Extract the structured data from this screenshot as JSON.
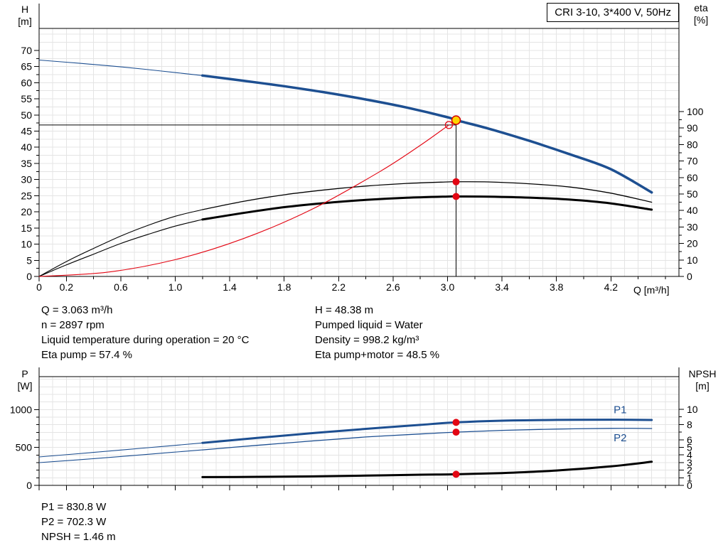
{
  "title_box": "CRI 3-10, 3*400 V, 50Hz",
  "axis_titles": {
    "top_left_line1": "H",
    "top_left_line2": "[m]",
    "top_right_line1": "eta",
    "top_right_line2": "[%]",
    "x_label": "Q [m³/h]",
    "bottom_left_line1": "P",
    "bottom_left_line2": "[W]",
    "bottom_right_line1": "NPSH",
    "bottom_right_line2": "[m]"
  },
  "info_top": {
    "left": [
      "Q = 3.063 m³/h",
      "n = 2897 rpm",
      "Liquid temperature during operation = 20 °C",
      "Eta pump = 57.4 %"
    ],
    "right": [
      "H = 48.38 m",
      "Pumped liquid = Water",
      "Density = 998.2 kg/m³",
      "Eta pump+motor = 48.5 %"
    ]
  },
  "info_bottom": [
    "P1 = 830.8 W",
    "P2 = 702.3 W",
    "NPSH = 1.46 m"
  ],
  "colors": {
    "curve_blue": "#1d4f91",
    "curve_black": "#000000",
    "curve_red": "#e30613",
    "dot_red": "#e30613",
    "duty_yellow": "#ffd400",
    "grid": "#e4e4e4"
  },
  "chart_data": {
    "type": "line",
    "x": {
      "label": "Q [m³/h]",
      "min": 0,
      "max": 4.7,
      "labeled_ticks": [
        "0",
        "0.2",
        "0.6",
        "1.0",
        "1.4",
        "1.8",
        "2.2",
        "2.6",
        "3.0",
        "3.4",
        "3.8",
        "4.2"
      ],
      "tick_step": 0.2,
      "minor_tick_step": 0.1
    },
    "duty_point": {
      "Q": 3.063,
      "H": 48.38,
      "eta_pump": 57.4,
      "eta_pump_motor": 48.5,
      "P1": 830.8,
      "P2": 702.3,
      "NPSH": 1.46,
      "n_rpm": 2897
    },
    "top_chart": {
      "left_axis": {
        "name": "H [m]",
        "min": 0,
        "max": 76.8,
        "labeled_ticks": [
          0,
          5,
          10,
          15,
          20,
          25,
          30,
          35,
          40,
          45,
          50,
          55,
          60,
          65,
          70
        ],
        "minor_tick_step": 2.5
      },
      "right_axis": {
        "name": "eta [%]",
        "min": 0,
        "max": 150.4,
        "labeled_ticks": [
          0,
          10,
          20,
          30,
          40,
          50,
          60,
          70,
          80,
          90,
          100
        ],
        "minor_tick_step": 5
      },
      "series": [
        {
          "name": "QH",
          "axis": "left",
          "color": "blue",
          "width": 3.5,
          "thin_until": 1.2,
          "points": [
            [
              0,
              67
            ],
            [
              0.3,
              66
            ],
            [
              0.6,
              64.9
            ],
            [
              0.9,
              63.6
            ],
            [
              1.2,
              62.2
            ],
            [
              1.5,
              60.6
            ],
            [
              1.8,
              58.9
            ],
            [
              2.1,
              57
            ],
            [
              2.4,
              54.8
            ],
            [
              2.7,
              52.3
            ],
            [
              3.0,
              49.3
            ],
            [
              3.063,
              48.38
            ],
            [
              3.3,
              45.8
            ],
            [
              3.6,
              42
            ],
            [
              3.9,
              37.8
            ],
            [
              4.2,
              33.2
            ],
            [
              4.5,
              26
            ]
          ]
        },
        {
          "name": "eta-pump",
          "axis": "right",
          "color": "black",
          "width": 1.3,
          "thin_until": 1.2,
          "points": [
            [
              0,
              0
            ],
            [
              0.2,
              9
            ],
            [
              0.4,
              17
            ],
            [
              0.6,
              24.5
            ],
            [
              0.8,
              31
            ],
            [
              1.0,
              36.5
            ],
            [
              1.2,
              40.5
            ],
            [
              1.5,
              45.5
            ],
            [
              1.8,
              49.5
            ],
            [
              2.1,
              52.5
            ],
            [
              2.4,
              54.8
            ],
            [
              2.7,
              56.4
            ],
            [
              3.0,
              57.3
            ],
            [
              3.063,
              57.4
            ],
            [
              3.3,
              57.3
            ],
            [
              3.6,
              56.2
            ],
            [
              3.9,
              54.2
            ],
            [
              4.2,
              50.5
            ],
            [
              4.5,
              45
            ]
          ]
        },
        {
          "name": "eta-pump-motor",
          "axis": "right",
          "color": "black",
          "width": 3,
          "thin_until": 1.2,
          "points": [
            [
              0,
              0
            ],
            [
              0.2,
              7
            ],
            [
              0.4,
              13.5
            ],
            [
              0.6,
              20
            ],
            [
              0.8,
              25.5
            ],
            [
              1.0,
              30.5
            ],
            [
              1.2,
              34.5
            ],
            [
              1.5,
              38.5
            ],
            [
              1.8,
              42
            ],
            [
              2.1,
              44.5
            ],
            [
              2.4,
              46.4
            ],
            [
              2.7,
              47.7
            ],
            [
              3.0,
              48.45
            ],
            [
              3.063,
              48.5
            ],
            [
              3.3,
              48.4
            ],
            [
              3.6,
              47.8
            ],
            [
              3.9,
              46.6
            ],
            [
              4.2,
              44.3
            ],
            [
              4.5,
              40.5
            ]
          ]
        },
        {
          "name": "system-curve",
          "axis": "left",
          "color": "red",
          "width": 1.1,
          "thin_until": 0,
          "points": [
            [
              0,
              0
            ],
            [
              0.5,
              1.3
            ],
            [
              1.0,
              5.2
            ],
            [
              1.5,
              11.7
            ],
            [
              2.0,
              20.7
            ],
            [
              2.5,
              32.4
            ],
            [
              2.8,
              40.6
            ],
            [
              3.01,
              46.9
            ]
          ]
        }
      ],
      "crosshair": {
        "h_value": 46.9,
        "h_to_Q": 3.063,
        "v_at_Q": 3.063,
        "v_top_value": 48.38
      },
      "markers": [
        {
          "kind": "open-circle",
          "Q": 3.01,
          "axis": "left",
          "value": 46.9
        },
        {
          "kind": "duty-point",
          "Q": 3.063,
          "axis": "left",
          "value": 48.38
        },
        {
          "kind": "dot",
          "Q": 3.063,
          "axis": "right",
          "value": 57.4
        },
        {
          "kind": "dot",
          "Q": 3.063,
          "axis": "right",
          "value": 48.5
        }
      ],
      "curve_labels": []
    },
    "bottom_chart": {
      "left_axis": {
        "name": "P [W]",
        "min": 0,
        "max": 1434,
        "labeled_ticks": [
          0,
          500,
          1000
        ],
        "minor_tick_step": 100
      },
      "right_axis": {
        "name": "NPSH [m]",
        "min": 0,
        "max": 14.3,
        "labeled_ticks": [
          0,
          1,
          2,
          3,
          4,
          5,
          6,
          8,
          10
        ],
        "minor_tick_step": 1
      },
      "series": [
        {
          "name": "P1",
          "axis": "left",
          "color": "blue",
          "width": 3,
          "thin_until": 1.2,
          "points": [
            [
              0,
              375
            ],
            [
              0.4,
              435
            ],
            [
              0.8,
              497
            ],
            [
              1.2,
              560
            ],
            [
              1.6,
              625
            ],
            [
              2.0,
              688
            ],
            [
              2.4,
              745
            ],
            [
              2.8,
              798
            ],
            [
              3.063,
              830.8
            ],
            [
              3.4,
              853
            ],
            [
              3.8,
              863
            ],
            [
              4.2,
              866
            ],
            [
              4.5,
              862
            ]
          ]
        },
        {
          "name": "P2",
          "axis": "left",
          "color": "blue",
          "width": 1.3,
          "thin_until": 1.2,
          "points": [
            [
              0,
              300
            ],
            [
              0.4,
              352
            ],
            [
              0.8,
              410
            ],
            [
              1.2,
              468
            ],
            [
              1.6,
              528
            ],
            [
              2.0,
              585
            ],
            [
              2.4,
              638
            ],
            [
              2.8,
              678
            ],
            [
              3.063,
              702.3
            ],
            [
              3.4,
              725
            ],
            [
              3.8,
              742
            ],
            [
              4.2,
              752
            ],
            [
              4.5,
              750
            ]
          ]
        },
        {
          "name": "NPSH",
          "axis": "right",
          "color": "black",
          "width": 3,
          "thin_until": 0,
          "points": [
            [
              1.2,
              1.08
            ],
            [
              1.6,
              1.12
            ],
            [
              2.0,
              1.18
            ],
            [
              2.4,
              1.28
            ],
            [
              2.8,
              1.4
            ],
            [
              3.063,
              1.46
            ],
            [
              3.4,
              1.62
            ],
            [
              3.8,
              1.95
            ],
            [
              4.2,
              2.5
            ],
            [
              4.5,
              3.1
            ]
          ]
        }
      ],
      "markers": [
        {
          "kind": "dot",
          "Q": 3.063,
          "axis": "left",
          "value": 830.8
        },
        {
          "kind": "dot",
          "Q": 3.063,
          "axis": "left",
          "value": 702.3
        },
        {
          "kind": "dot",
          "Q": 3.063,
          "axis": "right",
          "value": 1.46
        }
      ],
      "curve_labels": [
        {
          "text": "P1",
          "Q": 4.22,
          "axis": "left",
          "value": 950
        },
        {
          "text": "P2",
          "Q": 4.22,
          "axis": "left",
          "value": 580
        }
      ]
    }
  }
}
